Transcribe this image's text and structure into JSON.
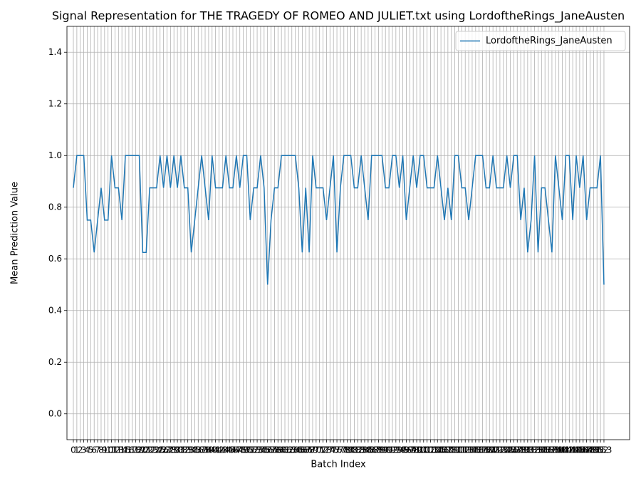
{
  "chart_data": {
    "type": "line",
    "title": "Signal Representation for THE TRAGEDY OF ROMEO AND JULIET.txt using LordoftheRings_JaneAusten",
    "x_label": "Batch Index",
    "y_label": "Mean Prediction Value",
    "x": [
      0,
      1,
      2,
      3,
      4,
      5,
      6,
      7,
      8,
      9,
      10,
      11,
      12,
      13,
      14,
      15,
      16,
      17,
      18,
      19,
      20,
      21,
      22,
      23,
      24,
      25,
      26,
      27,
      28,
      29,
      30,
      31,
      32,
      33,
      34,
      35,
      36,
      37,
      38,
      39,
      40,
      41,
      42,
      43,
      44,
      45,
      46,
      47,
      48,
      49,
      50,
      51,
      52,
      53,
      54,
      55,
      56,
      57,
      58,
      59,
      60,
      61,
      62,
      63,
      64,
      65,
      66,
      67,
      68,
      69,
      70,
      71,
      72,
      73,
      74,
      75,
      76,
      77,
      78,
      79,
      80,
      81,
      82,
      83,
      84,
      85,
      86,
      87,
      88,
      89,
      90,
      91,
      92,
      93,
      94,
      95,
      96,
      97,
      98,
      99,
      100,
      101,
      102,
      103,
      104,
      105,
      106,
      107,
      108,
      109,
      110,
      111,
      112,
      113,
      114,
      115,
      116,
      117,
      118,
      119,
      120,
      121,
      122,
      123,
      124,
      125,
      126,
      127,
      128,
      129,
      130,
      131,
      132,
      133,
      134,
      135,
      136,
      137,
      138,
      139,
      140,
      141,
      142,
      143,
      144,
      145,
      146,
      147,
      148,
      149,
      150,
      151,
      152,
      153
    ],
    "series": [
      {
        "name": "LordoftheRings_JaneAusten",
        "color": "#1f77b4",
        "values": [
          0.875,
          1,
          1,
          1,
          0.75,
          0.75,
          0.625,
          0.75,
          0.875,
          0.75,
          0.75,
          1,
          0.875,
          0.875,
          0.75,
          1,
          1,
          1,
          1,
          1,
          0.625,
          0.625,
          0.875,
          0.875,
          0.875,
          1,
          0.875,
          1,
          0.875,
          1,
          0.875,
          1,
          0.875,
          0.875,
          0.625,
          0.75,
          0.875,
          1,
          0.875,
          0.75,
          1,
          0.875,
          0.875,
          0.875,
          1,
          0.875,
          0.875,
          1,
          0.875,
          1,
          1,
          0.75,
          0.875,
          0.875,
          1,
          0.875,
          0.5,
          0.75,
          0.875,
          0.875,
          1,
          1,
          1,
          1,
          1,
          0.875,
          0.625,
          0.875,
          0.625,
          1,
          0.875,
          0.875,
          0.875,
          0.75,
          0.875,
          1,
          0.625,
          0.875,
          1,
          1,
          1,
          0.875,
          0.875,
          1,
          0.875,
          0.75,
          1,
          1,
          1,
          1,
          0.875,
          0.875,
          1,
          1,
          0.875,
          1,
          0.75,
          0.875,
          1,
          0.875,
          1,
          1,
          0.875,
          0.875,
          0.875,
          1,
          0.875,
          0.75,
          0.875,
          0.75,
          1,
          1,
          0.875,
          0.875,
          0.75,
          0.875,
          1,
          1,
          1,
          0.875,
          0.875,
          1,
          0.875,
          0.875,
          0.875,
          1,
          0.875,
          1,
          1,
          0.75,
          0.875,
          0.625,
          0.75,
          1,
          0.625,
          0.875,
          0.875,
          0.75,
          0.625,
          1,
          0.875,
          0.75,
          1,
          1,
          0.75,
          1,
          0.875,
          1,
          0.75,
          0.875,
          0.875,
          0.875,
          1,
          0.5
        ]
      }
    ],
    "xlim": [
      -1.85,
      160.4
    ],
    "xticks": [
      0,
      1,
      2,
      3,
      4,
      5,
      6,
      7,
      8,
      9,
      10,
      11,
      12,
      13,
      14,
      15,
      16,
      17,
      18,
      19,
      20,
      21,
      22,
      23,
      24,
      25,
      26,
      27,
      28,
      29,
      30,
      31,
      32,
      33,
      34,
      35,
      36,
      37,
      38,
      39,
      40,
      41,
      42,
      43,
      44,
      45,
      46,
      47,
      48,
      49,
      50,
      51,
      52,
      53,
      54,
      55,
      56,
      57,
      58,
      59,
      60,
      61,
      62,
      63,
      64,
      65,
      66,
      67,
      68,
      69,
      70,
      71,
      72,
      73,
      74,
      75,
      76,
      77,
      78,
      79,
      80,
      81,
      82,
      83,
      84,
      85,
      86,
      87,
      88,
      89,
      90,
      91,
      92,
      93,
      94,
      95,
      96,
      97,
      98,
      99,
      100,
      101,
      102,
      103,
      104,
      105,
      106,
      107,
      108,
      109,
      110,
      111,
      112,
      113,
      114,
      115,
      116,
      117,
      118,
      119,
      120,
      121,
      122,
      123,
      124,
      125,
      126,
      127,
      128,
      129,
      130,
      131,
      132,
      133,
      134,
      135,
      136,
      137,
      138,
      139,
      140,
      141,
      142,
      143,
      144,
      145,
      146,
      147,
      148,
      149,
      150,
      151,
      152,
      153
    ],
    "ylim": [
      -0.1,
      1.5
    ],
    "yticks": [
      {
        "value": 0,
        "label": "0.0"
      },
      {
        "value": 0.2,
        "label": "0.2"
      },
      {
        "value": 0.4,
        "label": "0.4"
      },
      {
        "value": 0.6,
        "label": "0.6"
      },
      {
        "value": 0.8,
        "label": "0.8"
      },
      {
        "value": 1.0,
        "label": "1.0"
      },
      {
        "value": 1.2,
        "label": "1.2"
      },
      {
        "value": 1.4,
        "label": "1.4"
      }
    ],
    "grid": true,
    "legend": "upper right"
  }
}
